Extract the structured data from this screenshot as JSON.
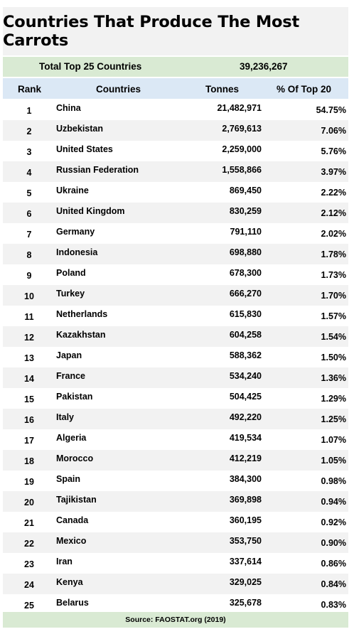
{
  "title": "Countries That Produce The Most Carrots",
  "total": {
    "label": "Total Top 25 Countries",
    "value": "39,236,267"
  },
  "headers": {
    "rank": "Rank",
    "country": "Countries",
    "tonnes": "Tonnes",
    "pct": "% Of Top 20"
  },
  "source": "Source:  FAOSTAT.org (2019)",
  "chart_data": {
    "type": "table",
    "title": "Countries That Produce The Most Carrots",
    "columns": [
      "Rank",
      "Countries",
      "Tonnes",
      "% Of Top 20"
    ],
    "rows": [
      {
        "rank": "1",
        "country": "China",
        "tonnes": "21,482,971",
        "pct": "54.75%"
      },
      {
        "rank": "2",
        "country": "Uzbekistan",
        "tonnes": "2,769,613",
        "pct": "7.06%"
      },
      {
        "rank": "3",
        "country": "United States",
        "tonnes": "2,259,000",
        "pct": "5.76%"
      },
      {
        "rank": "4",
        "country": "Russian Federation",
        "tonnes": "1,558,866",
        "pct": "3.97%"
      },
      {
        "rank": "5",
        "country": "Ukraine",
        "tonnes": "869,450",
        "pct": "2.22%"
      },
      {
        "rank": "6",
        "country": "United Kingdom",
        "tonnes": "830,259",
        "pct": "2.12%"
      },
      {
        "rank": "7",
        "country": "Germany",
        "tonnes": "791,110",
        "pct": "2.02%"
      },
      {
        "rank": "8",
        "country": "Indonesia",
        "tonnes": "698,880",
        "pct": "1.78%"
      },
      {
        "rank": "9",
        "country": "Poland",
        "tonnes": "678,300",
        "pct": "1.73%"
      },
      {
        "rank": "10",
        "country": "Turkey",
        "tonnes": "666,270",
        "pct": "1.70%"
      },
      {
        "rank": "11",
        "country": "Netherlands",
        "tonnes": "615,830",
        "pct": "1.57%"
      },
      {
        "rank": "12",
        "country": "Kazakhstan",
        "tonnes": "604,258",
        "pct": "1.54%"
      },
      {
        "rank": "13",
        "country": "Japan",
        "tonnes": "588,362",
        "pct": "1.50%"
      },
      {
        "rank": "14",
        "country": "France",
        "tonnes": "534,240",
        "pct": "1.36%"
      },
      {
        "rank": "15",
        "country": "Pakistan",
        "tonnes": "504,425",
        "pct": "1.29%"
      },
      {
        "rank": "16",
        "country": "Italy",
        "tonnes": "492,220",
        "pct": "1.25%"
      },
      {
        "rank": "17",
        "country": "Algeria",
        "tonnes": "419,534",
        "pct": "1.07%"
      },
      {
        "rank": "18",
        "country": "Morocco",
        "tonnes": "412,219",
        "pct": "1.05%"
      },
      {
        "rank": "19",
        "country": "Spain",
        "tonnes": "384,300",
        "pct": "0.98%"
      },
      {
        "rank": "20",
        "country": "Tajikistan",
        "tonnes": "369,898",
        "pct": "0.94%"
      },
      {
        "rank": "21",
        "country": "Canada",
        "tonnes": "360,195",
        "pct": "0.92%"
      },
      {
        "rank": "22",
        "country": "Mexico",
        "tonnes": "353,750",
        "pct": "0.90%"
      },
      {
        "rank": "23",
        "country": "Iran",
        "tonnes": "337,614",
        "pct": "0.86%"
      },
      {
        "rank": "24",
        "country": "Kenya",
        "tonnes": "329,025",
        "pct": "0.84%"
      },
      {
        "rank": "25",
        "country": "Belarus",
        "tonnes": "325,678",
        "pct": "0.83%"
      }
    ]
  }
}
